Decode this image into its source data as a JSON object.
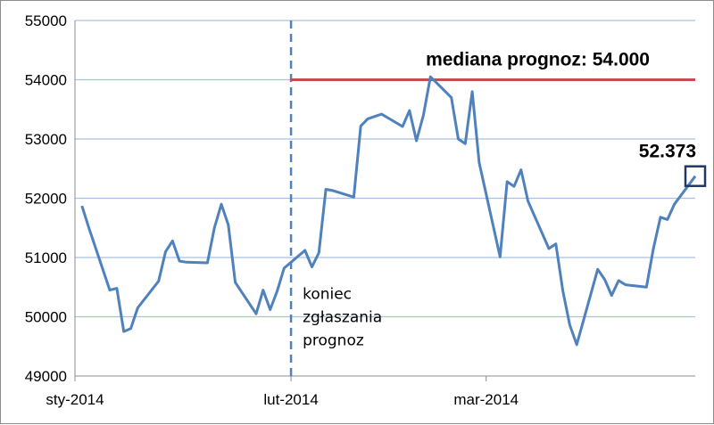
{
  "chart_data": {
    "type": "line",
    "title": "",
    "xlabel": "",
    "ylabel": "",
    "ylim": [
      49000,
      55000
    ],
    "yticks": [
      "49000",
      "50000",
      "51000",
      "52000",
      "53000",
      "54000",
      "55000"
    ],
    "xtick_labels": [
      {
        "date": "2014-01-01",
        "label": "sty-2014"
      },
      {
        "date": "2014-02-01",
        "label": "lut-2014"
      },
      {
        "date": "2014-03-01",
        "label": "mar-2014"
      }
    ],
    "xlim": [
      "2014-01-01",
      "2014-03-31"
    ],
    "grid": "horizontal",
    "legend": "none",
    "series": [
      {
        "color": "#4f81bd",
        "x": [
          "2014-01-02",
          "2014-01-03",
          "2014-01-06",
          "2014-01-07",
          "2014-01-08",
          "2014-01-09",
          "2014-01-10",
          "2014-01-13",
          "2014-01-14",
          "2014-01-15",
          "2014-01-16",
          "2014-01-17",
          "2014-01-20",
          "2014-01-21",
          "2014-01-22",
          "2014-01-23",
          "2014-01-24",
          "2014-01-27",
          "2014-01-28",
          "2014-01-29",
          "2014-01-30",
          "2014-01-31",
          "2014-02-03",
          "2014-02-04",
          "2014-02-05",
          "2014-02-06",
          "2014-02-07",
          "2014-02-10",
          "2014-02-11",
          "2014-02-12",
          "2014-02-13",
          "2014-02-14",
          "2014-02-17",
          "2014-02-18",
          "2014-02-19",
          "2014-02-20",
          "2014-02-21",
          "2014-02-24",
          "2014-02-25",
          "2014-02-26",
          "2014-02-27",
          "2014-02-28",
          "2014-03-03",
          "2014-03-04",
          "2014-03-05",
          "2014-03-06",
          "2014-03-07",
          "2014-03-10",
          "2014-03-11",
          "2014-03-12",
          "2014-03-13",
          "2014-03-14",
          "2014-03-17",
          "2014-03-18",
          "2014-03-19",
          "2014-03-20",
          "2014-03-21",
          "2014-03-24",
          "2014-03-25",
          "2014-03-26",
          "2014-03-27",
          "2014-03-28",
          "2014-03-31"
        ],
        "y": [
          51870,
          51500,
          50450,
          50480,
          49750,
          49800,
          50150,
          50600,
          51100,
          51280,
          50940,
          50920,
          50910,
          51500,
          51900,
          51550,
          50580,
          50050,
          50450,
          50120,
          50430,
          50820,
          51120,
          50840,
          51080,
          52150,
          52130,
          52020,
          53220,
          53340,
          53380,
          53420,
          53210,
          53480,
          52970,
          53400,
          54050,
          53700,
          53000,
          52920,
          53800,
          52600,
          51010,
          52280,
          52200,
          52480,
          51950,
          51150,
          51230,
          50440,
          49860,
          49530,
          50800,
          50630,
          50360,
          50610,
          50540,
          50500,
          51150,
          51680,
          51640,
          51900,
          52373
        ]
      }
    ],
    "reference_lines": [
      {
        "orientation": "vertical",
        "x": "2014-02-01",
        "color": "#4f81bd",
        "style": "dashed"
      },
      {
        "orientation": "horizontal",
        "y": 54000,
        "x_from": "2014-02-01",
        "x_to": "2014-03-31",
        "color": "#c0504d"
      }
    ],
    "annotations": {
      "median_label": "mediana prognoz: 54.000",
      "last_value_label": "52.373",
      "deadline_label_lines": [
        "koniec",
        "zgłaszania",
        "prognoz"
      ]
    }
  }
}
